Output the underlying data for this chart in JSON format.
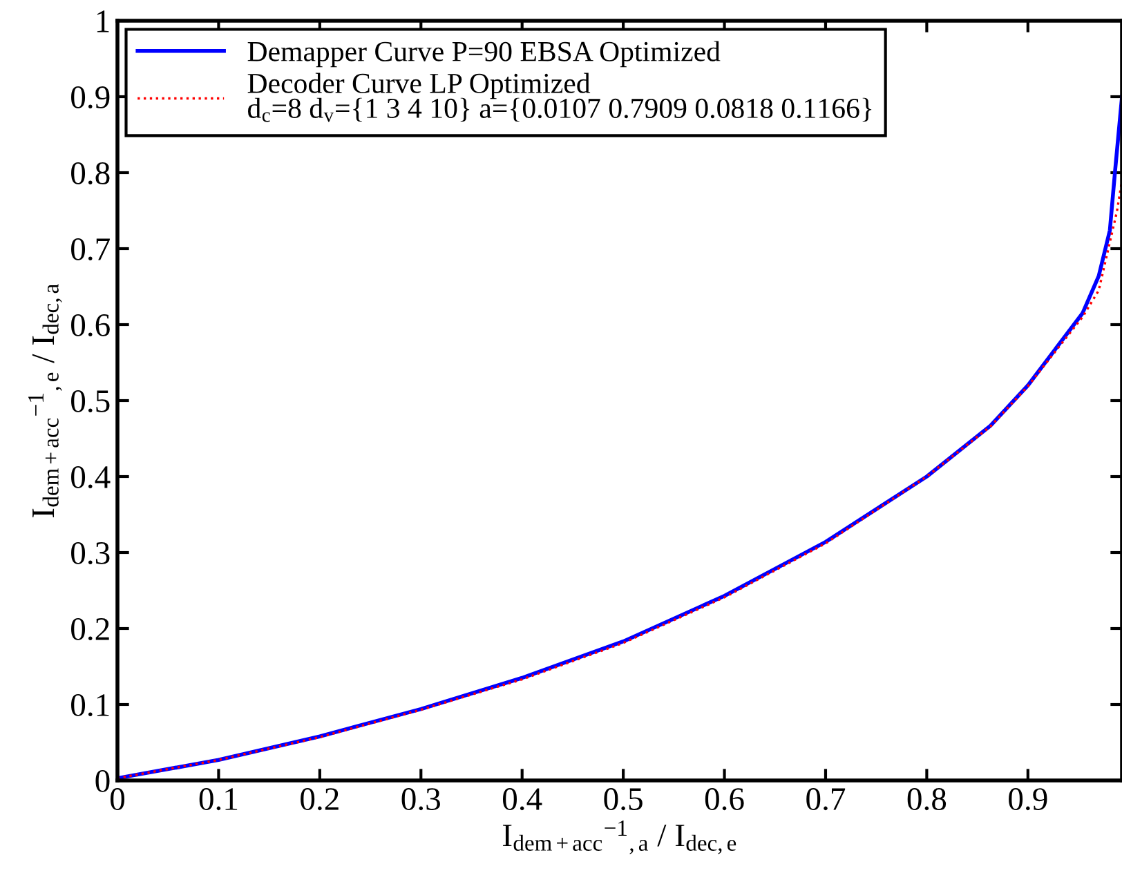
{
  "chart_data": {
    "type": "line",
    "xlabel": "I$_{dem+acc}$$^{−1}$$_{,a}$ / I$_{dec,e}$",
    "ylabel": "I$_{dem+acc}$$^{−1}$$_{,e}$ / I$_{dec,a}$",
    "xlim": [
      0,
      0.993
    ],
    "xticks": [
      0,
      0.1,
      0.2,
      0.3,
      0.4,
      0.5,
      0.6,
      0.7,
      0.8,
      0.9
    ],
    "ylim": [
      0,
      1
    ],
    "yticks": [
      0,
      0.1,
      0.2,
      0.3,
      0.4,
      0.5,
      0.6,
      0.7,
      0.8,
      0.9,
      1
    ],
    "grid": false,
    "legend": "top left",
    "series": [
      {
        "name": "Demapper Curve P=90 EBSA Optimized",
        "color": "#0000ff",
        "line_style": "solid",
        "x": [
          0,
          0.1,
          0.2,
          0.3,
          0.4,
          0.5,
          0.6,
          0.7,
          0.8,
          0.863,
          0.9,
          0.954,
          0.97,
          0.981,
          0.986,
          0.993
        ],
        "values": [
          0.003,
          0.027,
          0.058,
          0.094,
          0.135,
          0.183,
          0.243,
          0.314,
          0.4,
          0.467,
          0.52,
          0.615,
          0.664,
          0.724,
          0.8,
          0.9
        ]
      },
      {
        "name": "Decoder Curve LP Optimized\nd$_{c}$=8 d$_{v}$={1 3 4 10} a={0.0107 0.7909 0.0818 0.1166}",
        "color": "#ff0000",
        "line_style": "dotted",
        "x": [
          0,
          0.1,
          0.2,
          0.3,
          0.4,
          0.5,
          0.6,
          0.7,
          0.8,
          0.863,
          0.9,
          0.954,
          0.97,
          0.988,
          0.993
        ],
        "values": [
          0.003,
          0.027,
          0.057,
          0.093,
          0.133,
          0.181,
          0.241,
          0.312,
          0.4,
          0.466,
          0.519,
          0.61,
          0.645,
          0.749,
          0.79
        ]
      }
    ]
  }
}
